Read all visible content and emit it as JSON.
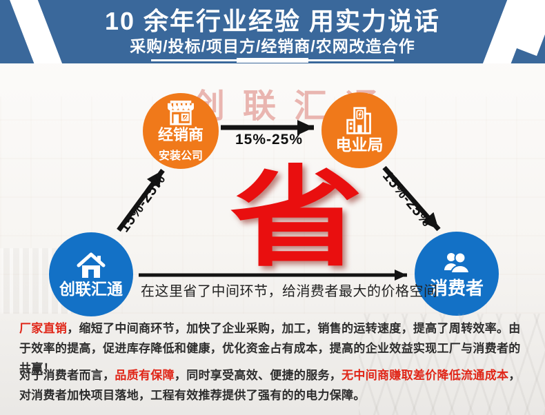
{
  "colors": {
    "banner-blue": "#3a689b",
    "circle-orange": "#f0791a",
    "circle-blue": "#1371c6",
    "save-red": "#e90f0f",
    "text-red": "#e02517",
    "text-dark": "#2d2d2d",
    "arrow-black": "#141414",
    "watermark-red": "rgba(205,70,60,0.38)"
  },
  "banner": {
    "title": "10 余年行业经验 用实力说话",
    "subtitle": "采购/投标/项目方/经销商/农网改造合作"
  },
  "watermark_text": "创联汇通",
  "diagram": {
    "nodes": [
      {
        "id": "manufacturer",
        "label": "创联汇通",
        "icon": "home-icon"
      },
      {
        "id": "dealer",
        "label": "经销商",
        "sublabel": "安装公司",
        "icon": "storefront-icon"
      },
      {
        "id": "power-bureau",
        "label": "电业局",
        "icon": "power-building-icon"
      },
      {
        "id": "consumer",
        "label": "消费者",
        "icon": "people-icon"
      }
    ],
    "edges": [
      {
        "from": "创联汇通",
        "to": "经销商",
        "label": "15%-25%"
      },
      {
        "from": "经销商",
        "to": "电业局",
        "label": "15%-25%"
      },
      {
        "from": "电业局",
        "to": "消费者",
        "label": "15%-25%"
      }
    ],
    "highlight_character": "省",
    "caption": "在这里省了中间环节，给消费者最大的价格空间"
  },
  "footer": {
    "paragraph1": [
      {
        "text": "厂家直销",
        "red": true
      },
      {
        "text": "，缩短了中间商环节，加快了企业采购，加工，销售的运转速度，提高了周转效率。由于效率的提高，促进库存降低和健康，优化资金占有成本，提高的企业效益实现工厂与消费者的共赢！",
        "red": false
      }
    ],
    "paragraph2": [
      {
        "text": "对于消费者而言，",
        "red": false
      },
      {
        "text": "品质有保障",
        "red": true
      },
      {
        "text": "，同时享受高效、便捷的服务，",
        "red": false
      },
      {
        "text": "无中间商赚取差价降低流通成本",
        "red": true
      },
      {
        "text": "，对消费者加快项目落地，工程有效推荐提供了强有的的电力保障。",
        "red": false
      }
    ]
  }
}
